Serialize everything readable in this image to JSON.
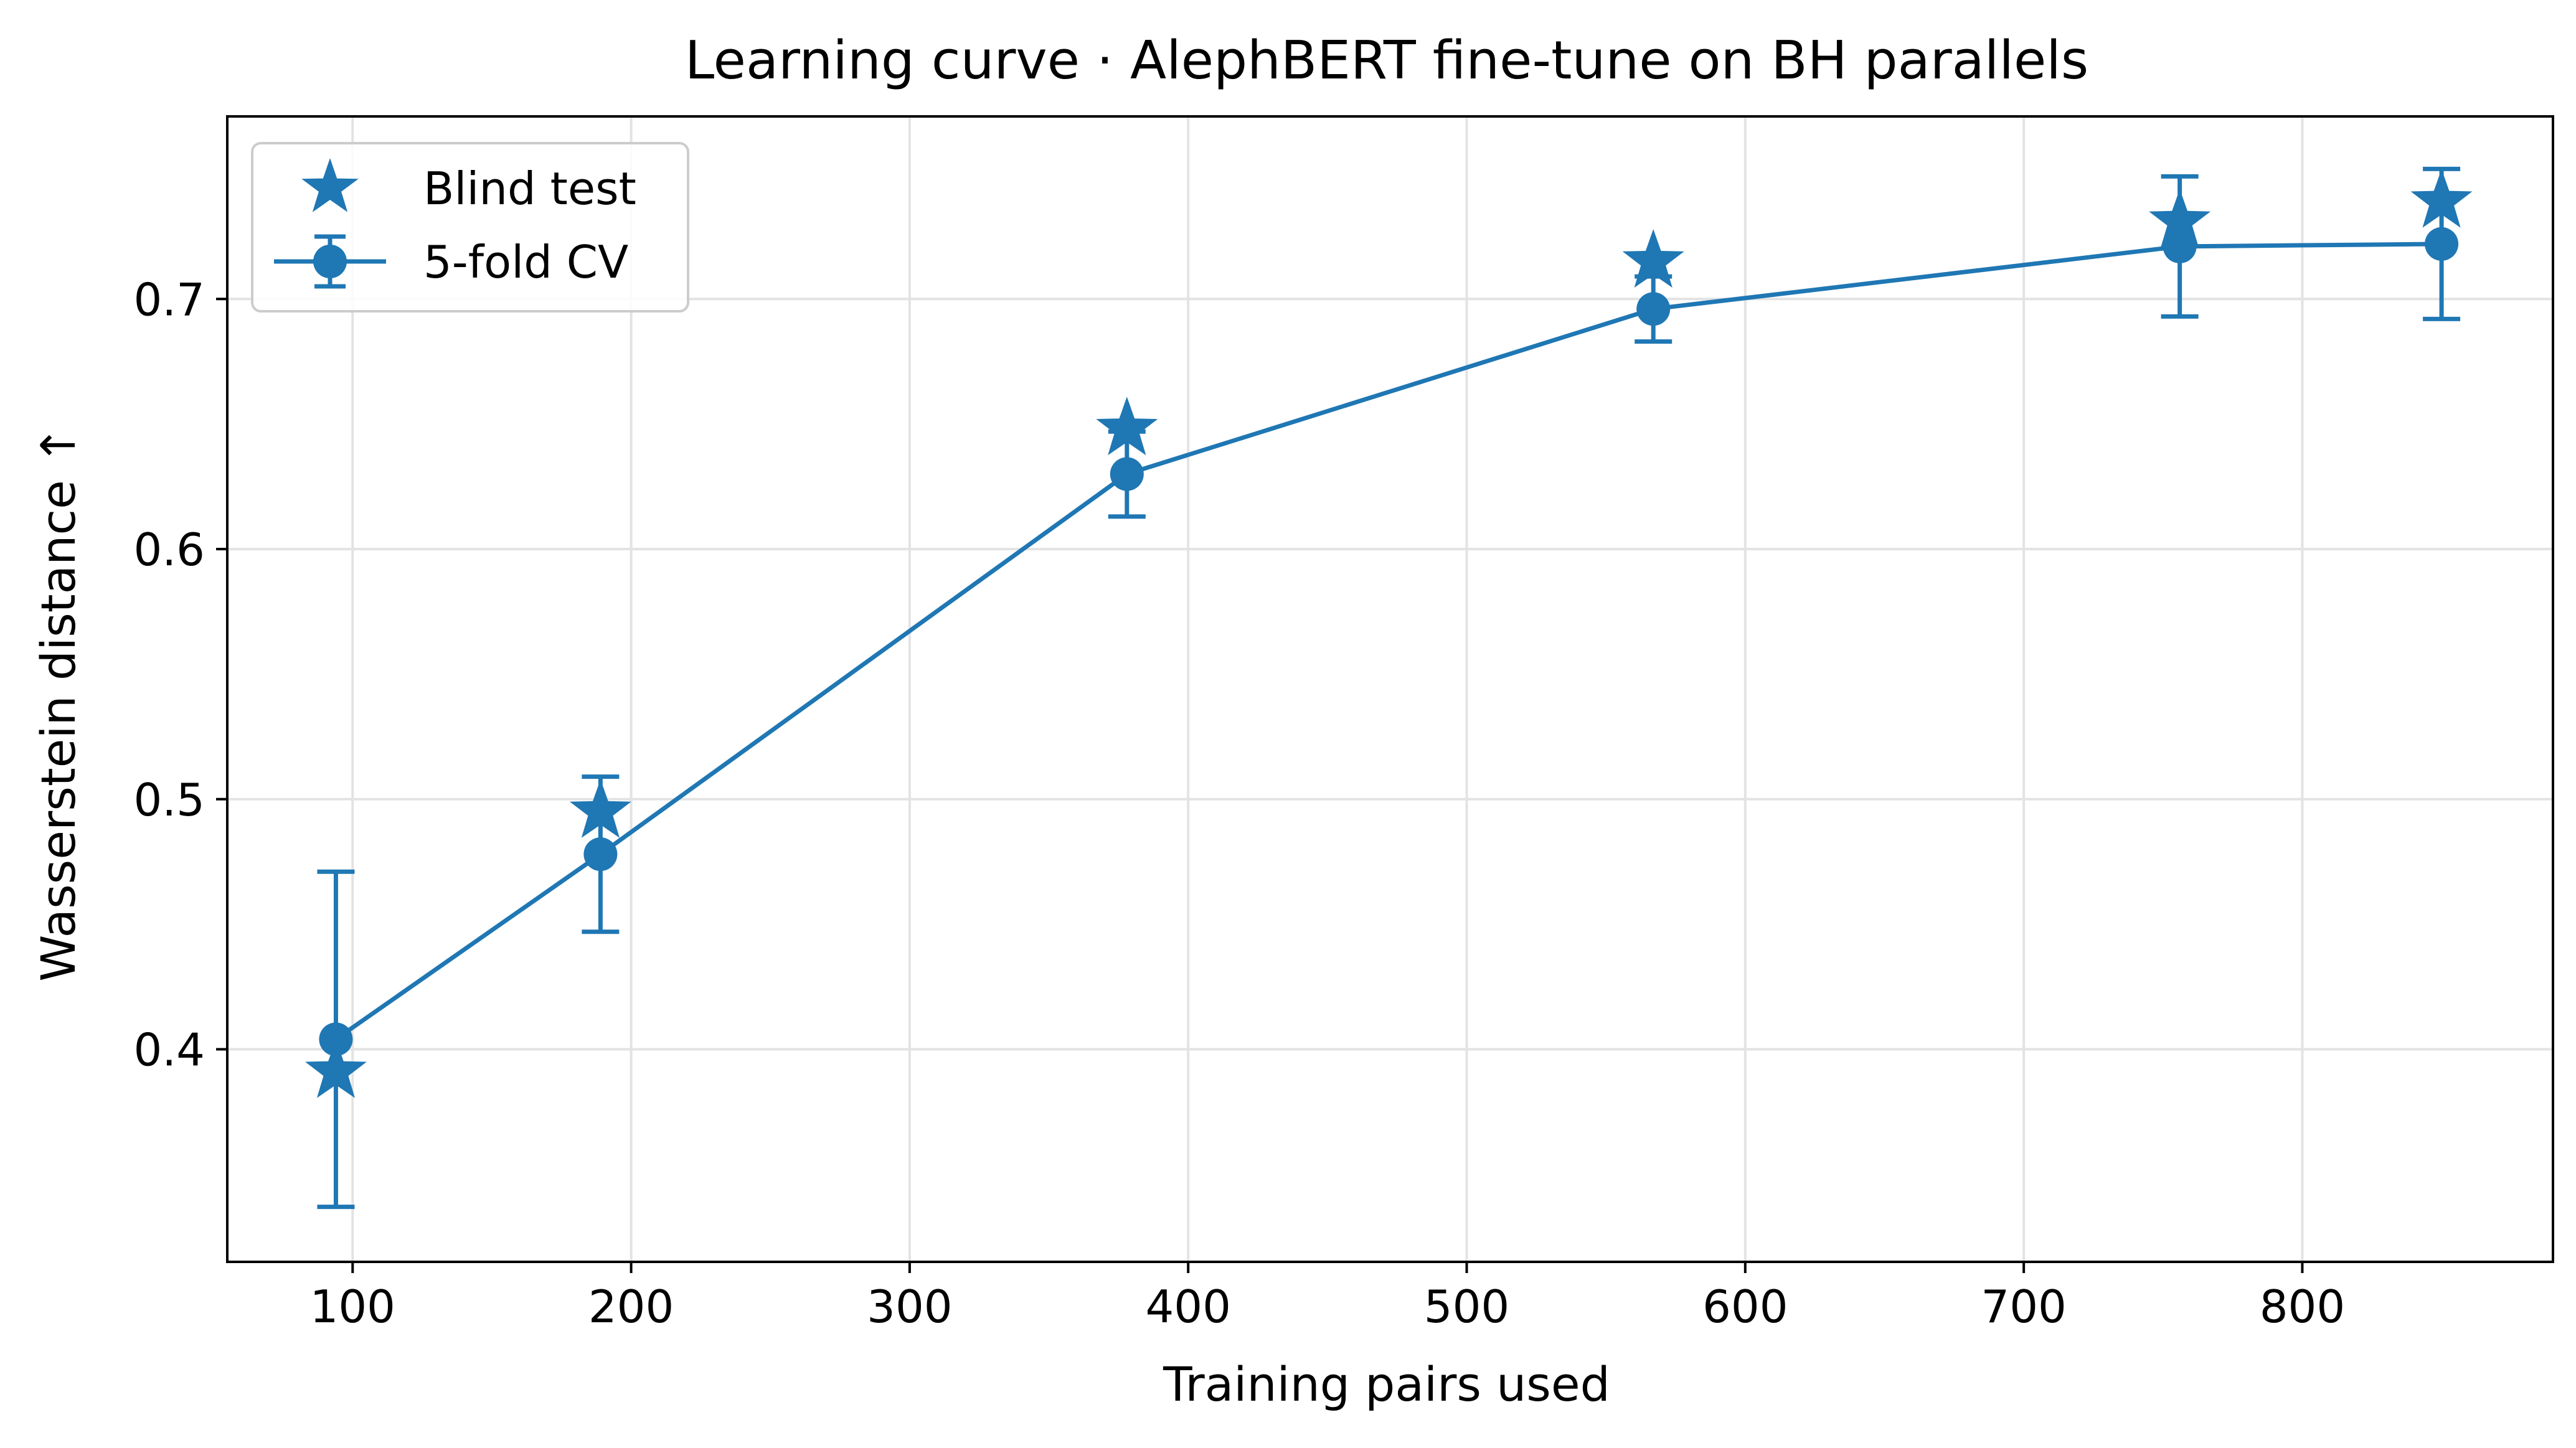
{
  "chart_data": {
    "type": "line",
    "title": "Learning curve · AlephBERT fine-tune on BH parallels",
    "xlabel": "Training pairs used",
    "ylabel": "Wasserstein distance ↑",
    "xlim": [
      55,
      890
    ],
    "ylim": [
      0.315,
      0.773
    ],
    "xticks": [
      100,
      200,
      300,
      400,
      500,
      600,
      700,
      800
    ],
    "xtick_labels": [
      "100",
      "200",
      "300",
      "400",
      "500",
      "600",
      "700",
      "800"
    ],
    "yticks": [
      0.4,
      0.5,
      0.6,
      0.7
    ],
    "ytick_labels": [
      "0.4",
      "0.5",
      "0.6",
      "0.7"
    ],
    "grid": true,
    "legend_position": "top-left",
    "color": "#1f77b4",
    "series": [
      {
        "name": "Blind test",
        "marker": "star",
        "line": false,
        "x": [
          94,
          189,
          378,
          567,
          756,
          850
        ],
        "y": [
          0.391,
          0.495,
          0.648,
          0.715,
          0.731,
          0.739
        ]
      },
      {
        "name": "5-fold CV",
        "marker": "circle",
        "line": true,
        "x": [
          94,
          189,
          378,
          567,
          756,
          850
        ],
        "y": [
          0.404,
          0.478,
          0.63,
          0.696,
          0.721,
          0.722
        ],
        "err_low": [
          0.337,
          0.447,
          0.613,
          0.683,
          0.693,
          0.692
        ],
        "err_high": [
          0.471,
          0.509,
          0.647,
          0.709,
          0.749,
          0.752
        ]
      }
    ]
  }
}
